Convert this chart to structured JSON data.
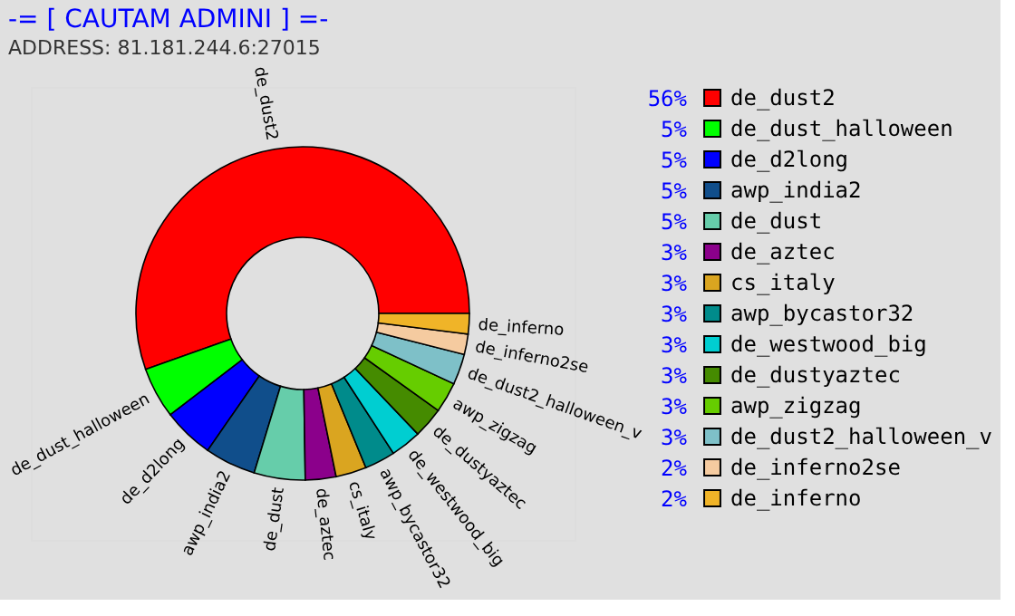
{
  "chart_data": {
    "type": "donut",
    "title": "-= [ CAUTAM ADMINI ] =-",
    "subtitle": "ADDRESS: 81.181.244.6:27015",
    "categories": [
      "de_dust2",
      "de_dust_halloween",
      "de_d2long",
      "awp_india2",
      "de_dust",
      "de_aztec",
      "cs_italy",
      "awp_bycastor32",
      "de_westwood_big",
      "de_dustyaztec",
      "awp_zigzag",
      "de_dust2_halloween_v",
      "de_inferno2se",
      "de_inferno"
    ],
    "values": [
      56,
      5,
      5,
      5,
      5,
      3,
      3,
      3,
      3,
      3,
      3,
      3,
      2,
      2
    ],
    "value_labels": [
      "56%",
      "5%",
      "5%",
      "5%",
      "5%",
      "3%",
      "3%",
      "3%",
      "3%",
      "3%",
      "3%",
      "3%",
      "2%",
      "2%"
    ],
    "colors": [
      "#ff0000",
      "#00ff00",
      "#0000ff",
      "#104e8b",
      "#66cdaa",
      "#8b008b",
      "#daa520",
      "#008b8b",
      "#00ced1",
      "#458b00",
      "#66cd00",
      "#7ec0c8",
      "#f5cba0",
      "#f0b428"
    ],
    "legend": "right"
  }
}
